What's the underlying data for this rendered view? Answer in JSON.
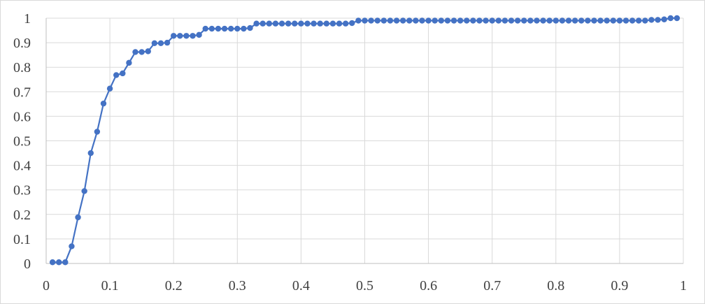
{
  "chart_data": {
    "type": "line",
    "title": "",
    "xlabel": "",
    "ylabel": "",
    "xlim": [
      0,
      1
    ],
    "ylim": [
      0,
      1
    ],
    "x_ticks": [
      "0",
      "0.1",
      "0.2",
      "0.3",
      "0.4",
      "0.5",
      "0.6",
      "0.7",
      "0.8",
      "0.9",
      "1"
    ],
    "y_ticks": [
      "0",
      "0.1",
      "0.2",
      "0.3",
      "0.4",
      "0.5",
      "0.6",
      "0.7",
      "0.8",
      "0.9",
      "1"
    ],
    "grid": true,
    "legend": "none",
    "markers": true,
    "series_color": "#4472C4",
    "series": [
      {
        "x": [
          0.01,
          0.02,
          0.03,
          0.04,
          0.05,
          0.06,
          0.07,
          0.08,
          0.09,
          0.1,
          0.11,
          0.12,
          0.13,
          0.14,
          0.15,
          0.16,
          0.17,
          0.18,
          0.19,
          0.2,
          0.21,
          0.22,
          0.23,
          0.24,
          0.25,
          0.26,
          0.27,
          0.28,
          0.29,
          0.3,
          0.31,
          0.32,
          0.33,
          0.34,
          0.35,
          0.36,
          0.37,
          0.38,
          0.39,
          0.4,
          0.41,
          0.42,
          0.43,
          0.44,
          0.45,
          0.46,
          0.47,
          0.48,
          0.49,
          0.5,
          0.51,
          0.52,
          0.53,
          0.54,
          0.55,
          0.56,
          0.57,
          0.58,
          0.59,
          0.6,
          0.61,
          0.62,
          0.63,
          0.64,
          0.65,
          0.66,
          0.67,
          0.68,
          0.69,
          0.7,
          0.71,
          0.72,
          0.73,
          0.74,
          0.75,
          0.76,
          0.77,
          0.78,
          0.79,
          0.8,
          0.81,
          0.82,
          0.83,
          0.84,
          0.85,
          0.86,
          0.87,
          0.88,
          0.89,
          0.9,
          0.91,
          0.92,
          0.93,
          0.94,
          0.95,
          0.96,
          0.97,
          0.98,
          0.99
        ],
        "values": [
          0.005,
          0.005,
          0.005,
          0.07,
          0.188,
          0.295,
          0.45,
          0.537,
          0.652,
          0.713,
          0.768,
          0.775,
          0.818,
          0.862,
          0.862,
          0.865,
          0.898,
          0.898,
          0.9,
          0.928,
          0.928,
          0.928,
          0.928,
          0.932,
          0.957,
          0.957,
          0.957,
          0.957,
          0.957,
          0.957,
          0.957,
          0.96,
          0.978,
          0.978,
          0.978,
          0.978,
          0.978,
          0.978,
          0.978,
          0.978,
          0.978,
          0.978,
          0.978,
          0.978,
          0.978,
          0.978,
          0.978,
          0.98,
          0.99,
          0.99,
          0.99,
          0.99,
          0.99,
          0.99,
          0.99,
          0.99,
          0.99,
          0.99,
          0.99,
          0.99,
          0.99,
          0.99,
          0.99,
          0.99,
          0.99,
          0.99,
          0.99,
          0.99,
          0.99,
          0.99,
          0.99,
          0.99,
          0.99,
          0.99,
          0.99,
          0.99,
          0.99,
          0.99,
          0.99,
          0.99,
          0.99,
          0.99,
          0.99,
          0.99,
          0.99,
          0.99,
          0.99,
          0.99,
          0.99,
          0.99,
          0.99,
          0.99,
          0.99,
          0.99,
          0.993,
          0.993,
          0.995,
          1.0,
          1.0
        ]
      }
    ]
  }
}
